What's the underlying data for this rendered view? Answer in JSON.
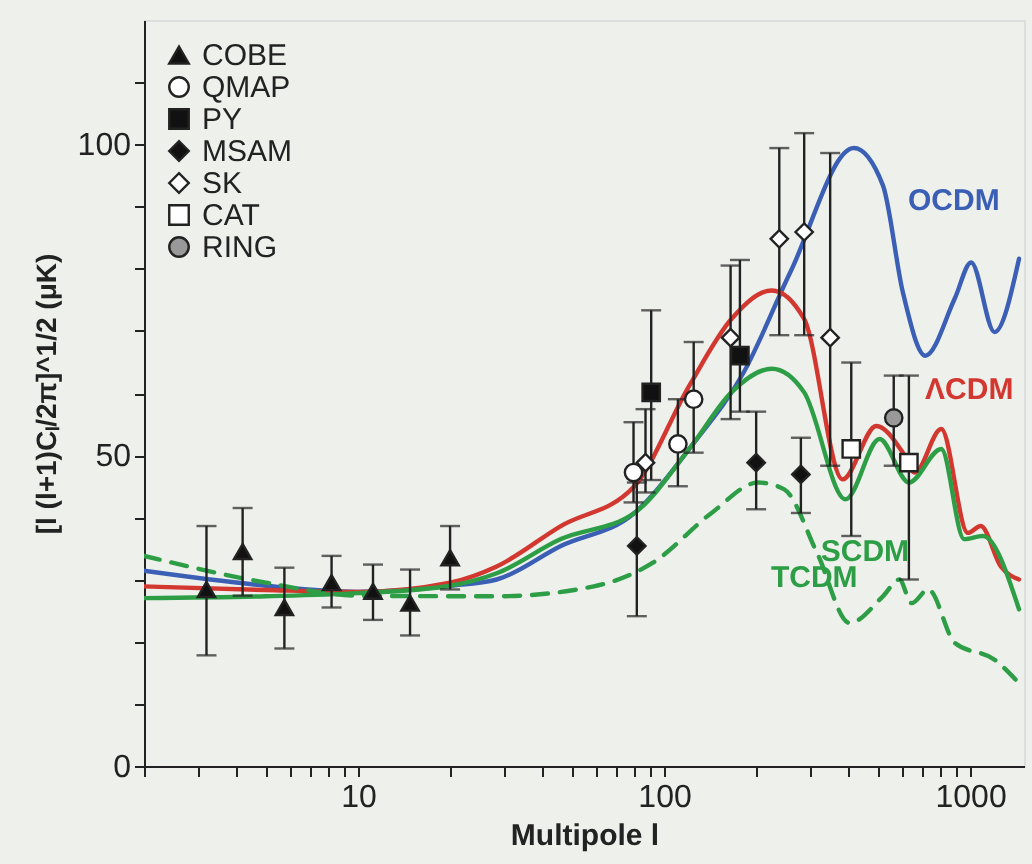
{
  "chart_data": {
    "type": "scatter",
    "xlabel": "Multipole l",
    "ylabel": "[l (l+1)Cₗ/2π]^1/2 (μK)",
    "log": "x",
    "grid": false,
    "legend": "top left",
    "xlim": [
      2,
      1500
    ],
    "ylim": [
      0,
      120
    ],
    "xticks": [
      {
        "value": 2,
        "label": null
      },
      {
        "value": 3,
        "label": null
      },
      {
        "value": 4,
        "label": null
      },
      {
        "value": 5,
        "label": null
      },
      {
        "value": 6,
        "label": null
      },
      {
        "value": 7,
        "label": null
      },
      {
        "value": 8,
        "label": null
      },
      {
        "value": 9,
        "label": null
      },
      10,
      {
        "value": 20,
        "label": null
      },
      {
        "value": 30,
        "label": null
      },
      {
        "value": 40,
        "label": null
      },
      {
        "value": 50,
        "label": null
      },
      {
        "value": 60,
        "label": null
      },
      {
        "value": 70,
        "label": null
      },
      {
        "value": 80,
        "label": null
      },
      {
        "value": 90,
        "label": null
      },
      100,
      {
        "value": 200,
        "label": null
      },
      {
        "value": 300,
        "label": null
      },
      {
        "value": 400,
        "label": null
      },
      {
        "value": 500,
        "label": null
      },
      {
        "value": 600,
        "label": null
      },
      {
        "value": 700,
        "label": null
      },
      {
        "value": 800,
        "label": null
      },
      {
        "value": 900,
        "label": null
      },
      1000
    ],
    "yticks": [
      0,
      {
        "value": 10,
        "label": null
      },
      {
        "value": 20,
        "label": null
      },
      {
        "value": 30,
        "label": null
      },
      {
        "value": 40,
        "label": null
      },
      50,
      {
        "value": 60,
        "label": null
      },
      {
        "value": 70,
        "label": null
      },
      {
        "value": 80,
        "label": null
      },
      {
        "value": 90,
        "label": null
      },
      100,
      {
        "value": 110,
        "label": null
      }
    ],
    "series": [
      {
        "name": "COBE",
        "type": "scatter",
        "marker": "triangle",
        "color": "#111111",
        "x": [
          3.2,
          4.2,
          5.75,
          8.2,
          11.2,
          14.8,
          20
        ],
        "values": [
          28.4,
          34.5,
          25.5,
          29.5,
          28.1,
          26.2,
          33.5
        ],
        "errors": [
          [
            17.8,
            38.6
          ],
          [
            27.4,
            41.5
          ],
          [
            18.9,
            31.9
          ],
          [
            25.5,
            33.8
          ],
          [
            23.5,
            32.4
          ],
          [
            21,
            31.6
          ],
          [
            28.4,
            38.6
          ]
        ]
      },
      {
        "name": "QMAP",
        "type": "scatter",
        "marker": "circle",
        "color": "#ffffff",
        "x": [
          79.5,
          111,
          125
        ],
        "values": [
          47.2,
          51.8,
          59
        ],
        "errors": [
          [
            42.4,
            55.3
          ],
          [
            45,
            59
          ],
          [
            50.4,
            68.2
          ]
        ]
      },
      {
        "name": "PY",
        "type": "scatter",
        "marker": "square",
        "color": "#111111",
        "x": [
          90.8,
          177
        ],
        "values": [
          60.1,
          66
        ],
        "errors": [
          [
            46,
            73.3
          ],
          [
            57,
            81.4
          ]
        ]
      },
      {
        "name": "MSAM",
        "type": "scatter",
        "marker": "diamond",
        "color": "#111111",
        "x": [
          81.5,
          200,
          280
        ],
        "values": [
          35.4,
          48.8,
          46.9
        ],
        "errors": [
          [
            24.1,
            45.6
          ],
          [
            41.3,
            57
          ],
          [
            40.7,
            52.8
          ]
        ]
      },
      {
        "name": "SK",
        "type": "scatter",
        "marker": "diamond",
        "color": "#ffffff",
        "x": [
          87,
          165,
          238,
          287,
          349
        ],
        "values": [
          48.8,
          68.9,
          84.8,
          85.9,
          68.9
        ],
        "errors": [
          [
            44,
            57.4
          ],
          [
            55.8,
            80.5
          ],
          [
            69.3,
            99.4
          ],
          [
            69.3,
            101.8
          ],
          [
            48.3,
            98.6
          ]
        ]
      },
      {
        "name": "CAT",
        "type": "scatter",
        "marker": "square",
        "color": "#ffffff",
        "x": [
          409,
          631
        ],
        "values": [
          51,
          48.8
        ],
        "errors": [
          [
            37,
            64.9
          ],
          [
            30,
            62.8
          ]
        ]
      },
      {
        "name": "RING",
        "type": "scatter",
        "marker": "circle",
        "color": "#999999",
        "x": [
          563
        ],
        "values": [
          56
        ],
        "errors": [
          [
            48.3,
            62.8
          ]
        ]
      },
      {
        "name": "OCDM",
        "type": "line",
        "line_style": "solid",
        "color": "#3a5fb5",
        "x": [
          2,
          5,
          10,
          20,
          28.4,
          46,
          80,
          123,
          182,
          259,
          417,
          519,
          603,
          714,
          891,
          1008,
          1202,
          1445
        ],
        "values": [
          31.4,
          29,
          28,
          29,
          30,
          35.4,
          40.7,
          51.5,
          63.3,
          79.5,
          99.4,
          93.4,
          76.2,
          66,
          75.2,
          81,
          69.8,
          81.6
        ]
      },
      {
        "name": "ΛCDM",
        "type": "line",
        "line_style": "solid",
        "color": "#d2382f",
        "x": [
          2,
          5,
          10,
          20,
          28.4,
          46,
          80,
          121,
          166,
          225,
          287,
          383,
          494,
          603,
          660,
          805,
          983,
          1083,
          1260,
          1445
        ],
        "values": [
          28.9,
          28.3,
          28,
          29.5,
          32.1,
          38.6,
          45,
          61.2,
          71.9,
          76.5,
          71.9,
          46.1,
          54.7,
          50.4,
          47.2,
          54.2,
          37.5,
          38.6,
          32.1,
          30
        ]
      },
      {
        "name": "SCDM",
        "type": "line",
        "line_style": "solid",
        "color": "#2e9e46",
        "x": [
          2,
          5,
          10,
          20,
          28.4,
          46,
          80,
          123,
          166,
          225,
          287,
          392,
          506,
          631,
          805,
          956,
          1100,
          1445
        ],
        "values": [
          27,
          27.3,
          27.8,
          29,
          31,
          36.5,
          40.7,
          51.5,
          60.1,
          63.9,
          60.1,
          42.9,
          52.6,
          45.6,
          51,
          36.5,
          37,
          25.2
        ]
      },
      {
        "name": "TCDM",
        "type": "line",
        "line_style": "dashed",
        "color": "#2e9e46",
        "x": [
          2,
          5,
          10,
          28.4,
          59,
          92,
          143,
          203,
          247,
          316,
          404,
          519,
          587,
          644,
          730,
          891,
          1202,
          1445
        ],
        "values": [
          33.8,
          29.5,
          27.4,
          27.3,
          28.9,
          32.7,
          40.7,
          45.6,
          44.5,
          34.3,
          23,
          27.3,
          30,
          26.2,
          28.4,
          19.8,
          17.1,
          13.3
        ]
      }
    ]
  }
}
